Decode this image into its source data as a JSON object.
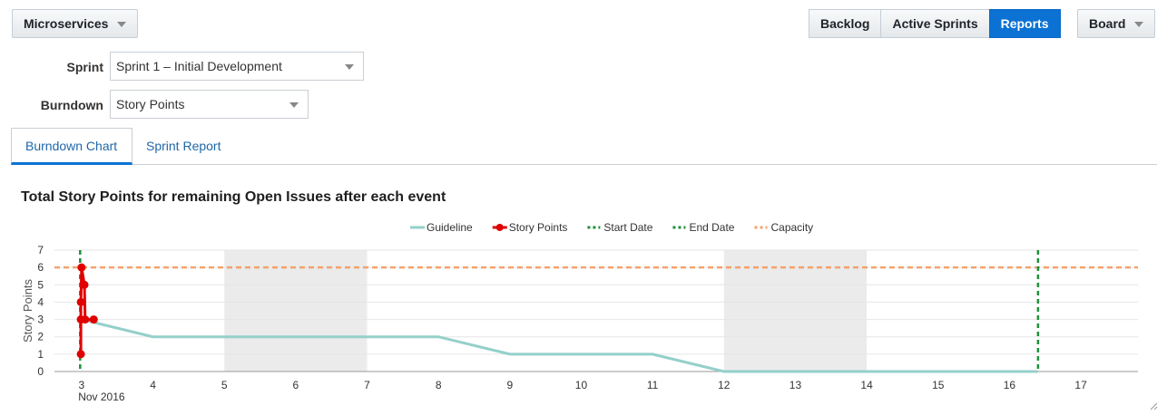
{
  "header": {
    "project_dropdown": "Microservices",
    "nav": [
      "Backlog",
      "Active Sprints",
      "Reports"
    ],
    "board_dropdown": "Board"
  },
  "filters": {
    "sprint_label": "Sprint",
    "sprint_value": "Sprint 1 – Initial Development",
    "burndown_label": "Burndown",
    "burndown_value": "Story Points"
  },
  "tabs": [
    "Burndown Chart",
    "Sprint Report"
  ],
  "colors": {
    "accent": "#0b72d3",
    "guideline": "#94d0c9",
    "story_points": "#e00000",
    "start_end": "#1e8f3a",
    "capacity": "#f4a26c",
    "weekend_band": "#ebebeb"
  },
  "chart_data": {
    "type": "line",
    "title": "Total Story Points for remaining Open Issues after each event",
    "ylabel": "Story Points",
    "xlabel": "",
    "ylim": [
      0,
      7
    ],
    "yticks": [
      "0",
      "1",
      "2",
      "3",
      "4",
      "5",
      "6",
      "7"
    ],
    "xlim": [
      2.62,
      17.8
    ],
    "xticks": [
      {
        "v": 3,
        "label": "3",
        "sub": "Nov 2016"
      },
      {
        "v": 4,
        "label": "4"
      },
      {
        "v": 5,
        "label": "5"
      },
      {
        "v": 6,
        "label": "6"
      },
      {
        "v": 7,
        "label": "7"
      },
      {
        "v": 8,
        "label": "8"
      },
      {
        "v": 9,
        "label": "9"
      },
      {
        "v": 10,
        "label": "10"
      },
      {
        "v": 11,
        "label": "11"
      },
      {
        "v": 12,
        "label": "12"
      },
      {
        "v": 13,
        "label": "13"
      },
      {
        "v": 14,
        "label": "14"
      },
      {
        "v": 15,
        "label": "15"
      },
      {
        "v": 16,
        "label": "16"
      },
      {
        "v": 17,
        "label": "17"
      }
    ],
    "legend": [
      "Guideline",
      "Story Points",
      "Start Date",
      "End Date",
      "Capacity"
    ],
    "legend_position": "top-center",
    "weekend_bands": [
      [
        5,
        7
      ],
      [
        12,
        14
      ]
    ],
    "series": [
      {
        "name": "Guideline",
        "points": [
          [
            3,
            3
          ],
          [
            4,
            2
          ],
          [
            8,
            2
          ],
          [
            9,
            1
          ],
          [
            11,
            1
          ],
          [
            12,
            0
          ],
          [
            16.4,
            0
          ]
        ]
      },
      {
        "name": "Story Points",
        "points": [
          [
            2.99,
            1
          ],
          [
            2.99,
            3
          ],
          [
            2.99,
            4
          ],
          [
            3.0,
            6
          ],
          [
            3.04,
            5
          ],
          [
            3.05,
            3
          ],
          [
            3.17,
            3
          ]
        ]
      }
    ],
    "start_date": 2.98,
    "end_date": 16.4,
    "capacity": 6
  }
}
